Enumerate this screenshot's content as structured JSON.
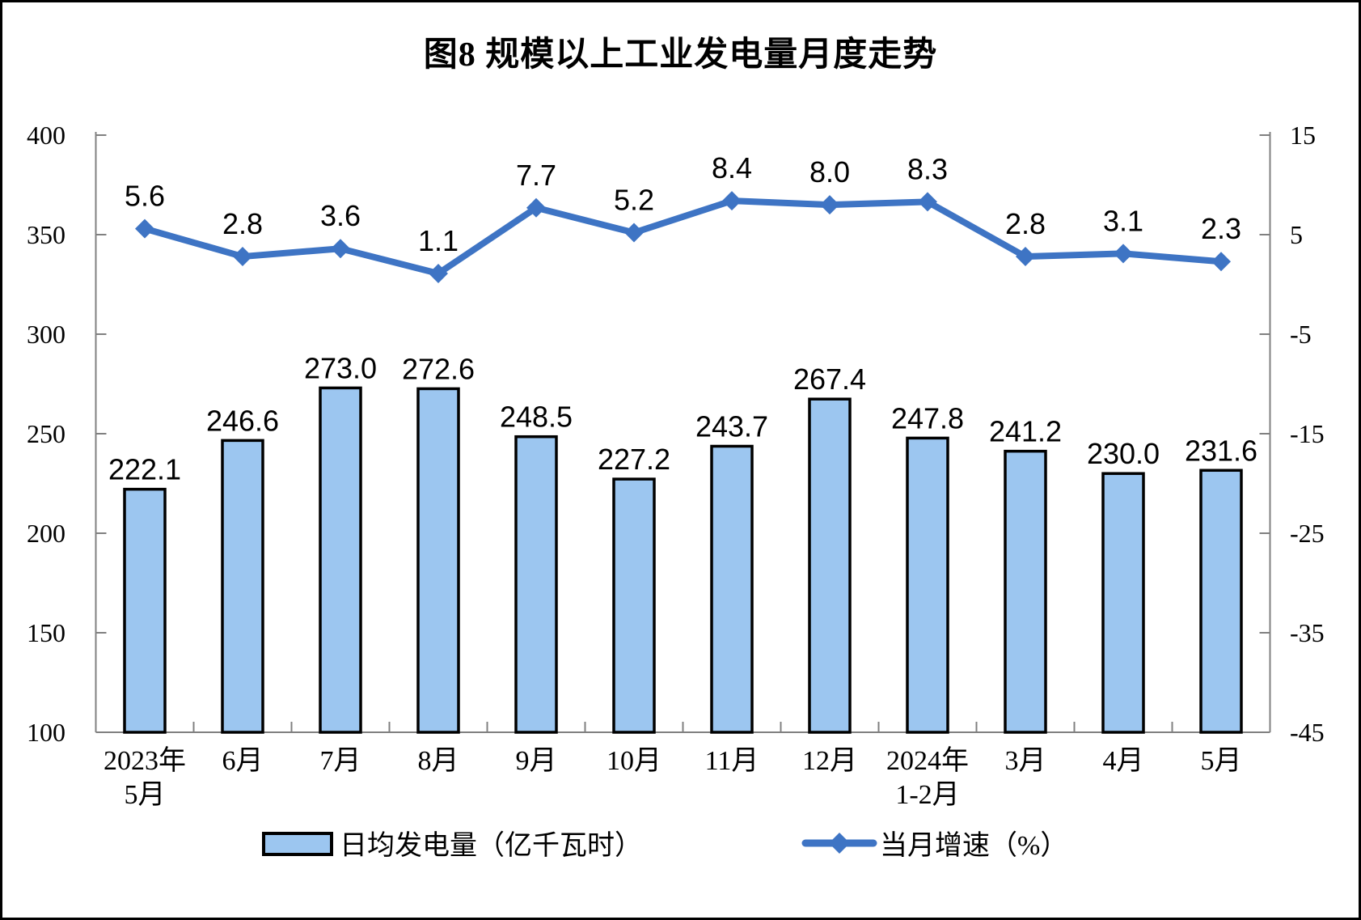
{
  "figure": {
    "title": "图8 规模以上工业发电量月度走势"
  },
  "chart_data": {
    "type": "combo_bar_line",
    "title": "图8 规模以上工业发电量月度走势",
    "categories": [
      [
        "2023年",
        "5月"
      ],
      [
        "6月"
      ],
      [
        "7月"
      ],
      [
        "8月"
      ],
      [
        "9月"
      ],
      [
        "10月"
      ],
      [
        "11月"
      ],
      [
        "12月"
      ],
      [
        "2024年",
        "1-2月"
      ],
      [
        "3月"
      ],
      [
        "4月"
      ],
      [
        "5月"
      ]
    ],
    "series": [
      {
        "name": "日均发电量（亿千瓦时）",
        "type": "bar",
        "axis": "left",
        "color": "#9CC6F0",
        "border_color": "#000000",
        "values": [
          222.1,
          246.6,
          273.0,
          272.6,
          248.5,
          227.2,
          243.7,
          267.4,
          247.8,
          241.2,
          230.0,
          231.6
        ]
      },
      {
        "name": "当月增速（%）",
        "type": "line",
        "axis": "right",
        "color": "#3E74C4",
        "marker": "diamond",
        "values": [
          5.6,
          2.8,
          3.6,
          1.1,
          7.7,
          5.2,
          8.4,
          8.0,
          8.3,
          2.8,
          3.1,
          2.3
        ]
      }
    ],
    "left_axis": {
      "min": 100,
      "max": 400,
      "tick_interval": 50,
      "ticks": [
        400,
        350,
        300,
        250,
        200,
        150,
        100
      ]
    },
    "right_axis": {
      "min": -45,
      "max": 15,
      "tick_interval": 10,
      "ticks": [
        15,
        5,
        -5,
        -15,
        -25,
        -35,
        -45
      ]
    },
    "grid": false,
    "value_labels": true,
    "legend_position": "bottom",
    "axis_color": "#808080",
    "label_color": "#000000"
  }
}
